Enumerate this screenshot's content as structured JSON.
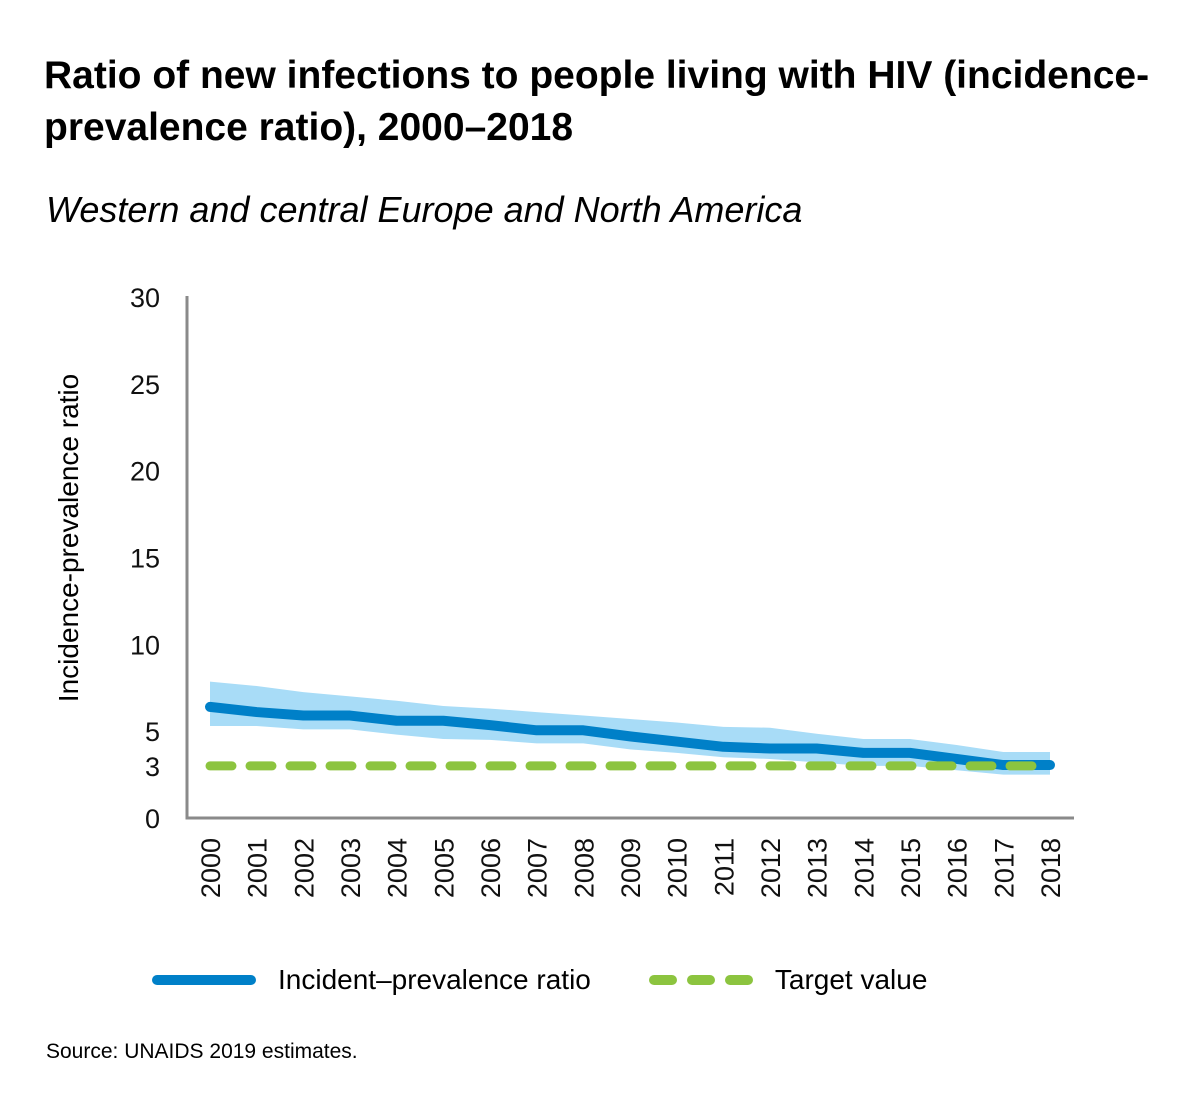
{
  "chart_data": {
    "type": "line",
    "title": "Ratio of new infections to people living with HIV (incidence-prevalence ratio), 2000–2018",
    "subtitle": "Western and central Europe and North America",
    "xlabel": "",
    "ylabel": "Incidence-prevalence ratio",
    "ylim": [
      0,
      30
    ],
    "yticks": [
      "0",
      "3",
      "5",
      "10",
      "15",
      "20",
      "25",
      "30"
    ],
    "ytick_values": [
      0,
      3,
      5,
      10,
      15,
      20,
      25,
      30
    ],
    "grid": false,
    "categories": [
      "2000",
      "2001",
      "2002",
      "2003",
      "2004",
      "2005",
      "2006",
      "2007",
      "2008",
      "2009",
      "2010",
      "2011",
      "2012",
      "2013",
      "2014",
      "2015",
      "2016",
      "2017",
      "2018"
    ],
    "series": [
      {
        "name": "Incident–prevalence ratio",
        "color": "#0080c8",
        "style": "solid",
        "values": [
          6.4,
          6.1,
          5.9,
          5.9,
          5.6,
          5.6,
          5.35,
          5.05,
          5.05,
          4.7,
          4.4,
          4.1,
          4.0,
          4.0,
          3.75,
          3.75,
          3.4,
          3.05,
          3.05
        ],
        "uncertainty": {
          "color": "#a8dcf7",
          "upper": [
            7.85,
            7.6,
            7.25,
            7.0,
            6.75,
            6.45,
            6.3,
            6.1,
            5.9,
            5.7,
            5.5,
            5.25,
            5.2,
            4.85,
            4.55,
            4.55,
            4.2,
            3.8,
            3.8
          ],
          "lower": [
            5.3,
            5.3,
            5.1,
            5.1,
            4.8,
            4.55,
            4.5,
            4.3,
            4.3,
            3.95,
            3.75,
            3.5,
            3.4,
            3.2,
            3.0,
            3.0,
            2.75,
            2.5,
            2.5
          ]
        }
      },
      {
        "name": "Target value",
        "color": "#8cc43f",
        "style": "dashed",
        "values": [
          3,
          3,
          3,
          3,
          3,
          3,
          3,
          3,
          3,
          3,
          3,
          3,
          3,
          3,
          3,
          3,
          3,
          3,
          3
        ]
      }
    ],
    "legend": {
      "position": "bottom",
      "items": [
        {
          "label": "Incident–prevalence ratio",
          "style": "solid",
          "color": "#0080c8"
        },
        {
          "label": "Target value",
          "style": "dashed",
          "color": "#8cc43f"
        }
      ]
    },
    "source": "Source: UNAIDS 2019 estimates."
  }
}
